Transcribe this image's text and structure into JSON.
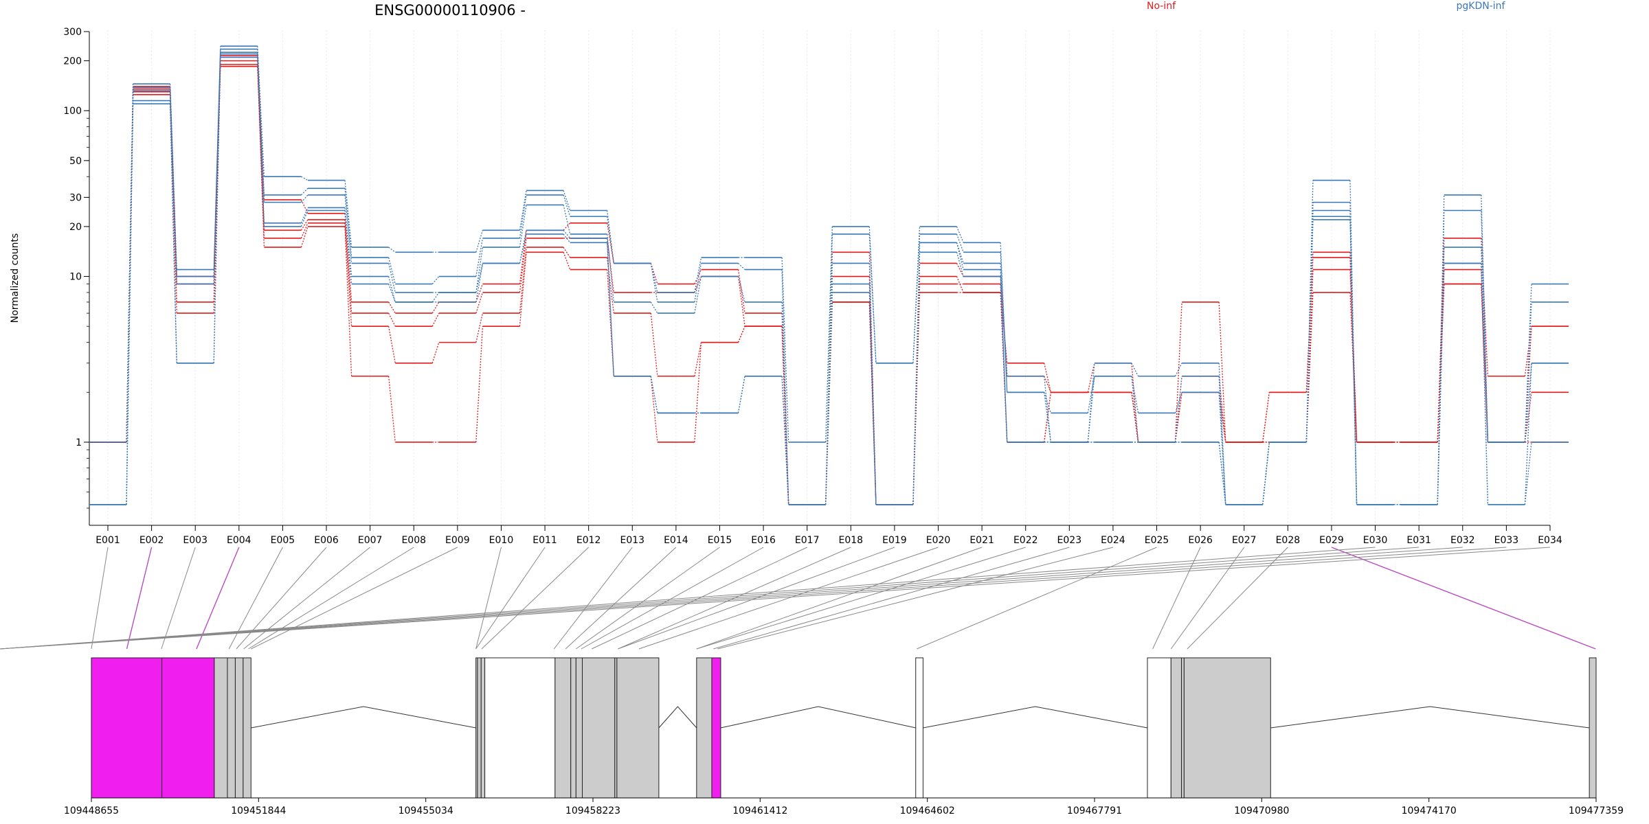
{
  "chart_data": {
    "type": "line",
    "title": "ENSG00000110906 -",
    "ylabel": "Normalized counts",
    "xlabel": "",
    "yscale": "log",
    "ylim": [
      0.4,
      300
    ],
    "yticks": [
      1,
      10,
      20,
      30,
      50,
      100,
      200,
      300
    ],
    "grid": "vertical dotted lines at each exon",
    "legend_placement": "top, above plot",
    "legend": [
      {
        "label": "No-inf",
        "color": "#e31a1c"
      },
      {
        "label": "pgKDN-inf",
        "color": "#3a78b8"
      }
    ],
    "categories": [
      "E001",
      "E002",
      "E003",
      "E004",
      "E005",
      "E006",
      "E007",
      "E008",
      "E009",
      "E010",
      "E011",
      "E012",
      "E013",
      "E014",
      "E015",
      "E016",
      "E017",
      "E018",
      "E019",
      "E020",
      "E021",
      "E022",
      "E023",
      "E024",
      "E025",
      "E026",
      "E027",
      "E028",
      "E029",
      "E030",
      "E031",
      "E032",
      "E033",
      "E034"
    ],
    "series": [
      {
        "group": "No-inf",
        "color": "#e31a1c",
        "values": [
          1,
          140,
          10,
          215,
          29,
          24,
          7,
          6,
          7,
          9,
          19,
          21,
          12,
          9,
          11,
          6,
          0.42,
          14,
          0.42,
          12,
          10,
          2.5,
          2,
          3,
          1,
          2.5,
          1,
          2,
          14,
          1,
          1,
          17,
          2.5,
          5
        ]
      },
      {
        "group": "No-inf",
        "color": "#e31a1c",
        "values": [
          1,
          135,
          9,
          200,
          19,
          22,
          6,
          5,
          6,
          8,
          17,
          17,
          8,
          8,
          10,
          5,
          0.42,
          10,
          0.42,
          10,
          8,
          3,
          2,
          2,
          1,
          2,
          1,
          2,
          13,
          1,
          1,
          11,
          1,
          5
        ]
      },
      {
        "group": "No-inf",
        "color": "#e31a1c",
        "values": [
          1,
          130,
          7,
          190,
          17,
          21,
          5,
          3,
          4,
          6,
          15,
          13,
          6,
          2.5,
          4,
          5,
          0.42,
          7,
          0.42,
          9,
          9,
          1,
          2,
          2,
          1,
          7,
          1,
          1,
          11,
          1,
          1,
          9,
          1,
          2
        ]
      },
      {
        "group": "No-inf",
        "color": "#e31a1c",
        "values": [
          1,
          125,
          6,
          185,
          15,
          20,
          2.5,
          1,
          1,
          5,
          14,
          11,
          2.5,
          1,
          4,
          5,
          0.42,
          7,
          0.42,
          8,
          8,
          1,
          2,
          2,
          1,
          2,
          1,
          1,
          8,
          1,
          1,
          9,
          1,
          1
        ]
      },
      {
        "group": "pgKDN-inf",
        "color": "#3a78b8",
        "values": [
          1,
          145,
          11,
          245,
          40,
          38,
          15,
          14,
          14,
          19,
          33,
          25,
          12,
          8,
          13,
          13,
          1,
          20,
          3,
          20,
          16,
          2,
          1,
          3,
          2.5,
          3,
          0.42,
          1,
          38,
          0.42,
          0.42,
          31,
          1,
          9
        ]
      },
      {
        "group": "pgKDN-inf",
        "color": "#3a78b8",
        "values": [
          0.42,
          138,
          10,
          235,
          31,
          34,
          13,
          9,
          10,
          17,
          31,
          23,
          12,
          7,
          12,
          11,
          0.42,
          18,
          3,
          18,
          14,
          2,
          1.5,
          2.5,
          1.5,
          2,
          0.42,
          1,
          28,
          0.42,
          0.42,
          25,
          1,
          7
        ]
      },
      {
        "group": "pgKDN-inf",
        "color": "#3a78b8",
        "values": [
          0.42,
          132,
          9,
          225,
          28,
          31,
          12,
          8,
          8,
          15,
          27,
          18,
          7,
          6,
          10,
          7,
          0.42,
          12,
          0.42,
          16,
          12,
          2.5,
          1,
          2.5,
          1,
          2.5,
          0.42,
          1,
          25,
          0.42,
          0.42,
          15,
          1,
          3
        ]
      },
      {
        "group": "pgKDN-inf",
        "color": "#3a78b8",
        "values": [
          0.42,
          115,
          3,
          220,
          21,
          26,
          10,
          7,
          8,
          12,
          19,
          17,
          2.5,
          1.5,
          1.5,
          2.5,
          0.42,
          9,
          0.42,
          16,
          11,
          1,
          1,
          1,
          1,
          1,
          0.42,
          1,
          23,
          0.42,
          0.42,
          12,
          0.42,
          3
        ]
      },
      {
        "group": "pgKDN-inf",
        "color": "#3a78b8",
        "values": [
          0.42,
          110,
          3,
          210,
          20,
          25,
          9,
          7,
          7,
          12,
          18,
          16,
          2.5,
          1.5,
          1.5,
          2.5,
          0.42,
          8,
          0.42,
          14,
          10,
          1,
          1,
          1,
          1,
          1,
          0.42,
          1,
          22,
          0.42,
          0.42,
          12,
          0.42,
          1
        ]
      }
    ],
    "gene_model": {
      "coordinate_ticks": [
        "109448655",
        "109451844",
        "109455034",
        "109458223",
        "109461412",
        "109464602",
        "109467791",
        "109470980",
        "109474170",
        "109477359"
      ],
      "start": 109448655,
      "end": 109477359,
      "exon_fill_color": "#cccccc",
      "highlight_color": "#f01ff0",
      "exon_blocks": [
        {
          "start": 109448655,
          "end": 109450000,
          "fill": "#f01ff0"
        },
        {
          "start": 109450000,
          "end": 109451000,
          "fill": "#f01ff0"
        },
        {
          "start": 109451000,
          "end": 109451250,
          "fill": "#cccccc"
        },
        {
          "start": 109451250,
          "end": 109451400,
          "fill": "#cccccc"
        },
        {
          "start": 109451400,
          "end": 109451550,
          "fill": "#cccccc"
        },
        {
          "start": 109451550,
          "end": 109451700,
          "fill": "#cccccc"
        },
        {
          "start": 109455990,
          "end": 109456020,
          "fill": "#cccccc"
        },
        {
          "start": 109456020,
          "end": 109456090,
          "fill": "#cccccc"
        },
        {
          "start": 109456090,
          "end": 109456160,
          "fill": "#cccccc"
        },
        {
          "start": 109456160,
          "end": 109457500,
          "fill": "#ffffff"
        },
        {
          "start": 109457500,
          "end": 109457800,
          "fill": "#cccccc"
        },
        {
          "start": 109457800,
          "end": 109457900,
          "fill": "#cccccc"
        },
        {
          "start": 109457900,
          "end": 109458020,
          "fill": "#cccccc"
        },
        {
          "start": 109458020,
          "end": 109458640,
          "fill": "#cccccc"
        },
        {
          "start": 109458640,
          "end": 109458680,
          "fill": "#cccccc"
        },
        {
          "start": 109458680,
          "end": 109459480,
          "fill": "#cccccc"
        },
        {
          "start": 109460200,
          "end": 109460490,
          "fill": "#cccccc"
        },
        {
          "start": 109460490,
          "end": 109460660,
          "fill": "#f01ff0"
        },
        {
          "start": 109464380,
          "end": 109464520,
          "fill": "#ffffff"
        },
        {
          "start": 109468800,
          "end": 109469250,
          "fill": "#ffffff"
        },
        {
          "start": 109469250,
          "end": 109469450,
          "fill": "#cccccc"
        },
        {
          "start": 109469450,
          "end": 109469500,
          "fill": "#cccccc"
        },
        {
          "start": 109469500,
          "end": 109471150,
          "fill": "#cccccc"
        },
        {
          "start": 109477230,
          "end": 109477359,
          "fill": "#cccccc"
        }
      ],
      "introns": [
        [
          109451700,
          109455990
        ],
        [
          109459480,
          109460200
        ],
        [
          109460660,
          109464380
        ],
        [
          109464520,
          109468800
        ],
        [
          109471150,
          109477230
        ]
      ],
      "connector_targets": [
        109448655,
        109449330,
        109449990,
        109450660,
        109451280,
        109451420,
        109451560,
        109451650,
        109451700,
        109455990,
        109456100,
        109456750,
        109457480,
        109457700,
        109457900,
        109458000,
        109458200,
        109458700,
        109459100,
        109460200,
        109460520,
        109460600,
        109464400,
        109468900,
        109469250,
        109469560,
        109477350
      ],
      "connector_map": [
        0,
        1,
        2,
        3,
        4,
        5,
        6,
        7,
        8,
        9,
        9,
        10,
        12,
        13,
        14,
        15,
        16,
        17,
        17,
        18,
        19,
        19,
        20,
        21,
        22,
        23,
        24,
        25,
        26,
        27,
        28,
        29,
        30,
        31
      ],
      "highlight_exons": [
        "E002",
        "E004",
        "E029"
      ]
    }
  }
}
